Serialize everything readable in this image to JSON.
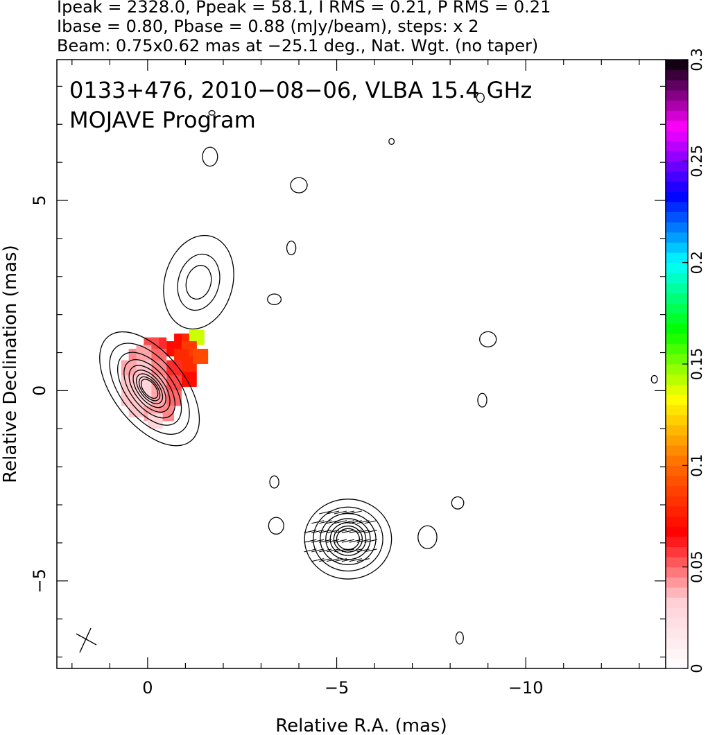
{
  "header": {
    "line1": "Ipeak = 2328.0, Ppeak = 58.1, I RMS = 0.21, P RMS = 0.21",
    "line2": "Ibase = 0.80, Pbase = 0.88 (mJy/beam), steps: x 2",
    "line3": "Beam: 0.75x0.62 mas at −25.1 deg., Nat. Wgt. (no taper)"
  },
  "chart_data": {
    "type": "heatmap",
    "title": "0133+476, 2010−08−06, VLBA 15.4 GHz",
    "subtitle": "MOJAVE Program",
    "xlabel": "Relative R.A. (mas)",
    "ylabel": "Relative Declination (mas)",
    "xlim": [
      2.4,
      -13.7
    ],
    "ylim": [
      -7.3,
      8.7
    ],
    "x_ticks": [
      0,
      -5,
      -10
    ],
    "x_tick_labels": [
      "0",
      "−5",
      "−10"
    ],
    "y_ticks": [
      -5,
      0,
      5
    ],
    "y_tick_labels": [
      "−5",
      "0",
      "5"
    ],
    "colorbar": {
      "range": [
        0,
        0.3
      ],
      "ticks": [
        0,
        0.05,
        0.1,
        0.15,
        0.2,
        0.25,
        0.3
      ],
      "tick_labels": [
        "0",
        "0.05",
        "0.1",
        "0.15",
        "0.2",
        "0.25",
        "0.3"
      ],
      "colors": [
        "#ffffff",
        "#ffd0d6",
        "#ff0000",
        "#ff6a00",
        "#ffff00",
        "#00ff00",
        "#00ffff",
        "#0000ff",
        "#ff00ff",
        "#000000"
      ]
    },
    "contour_color": "#000000",
    "contour_sources": [
      {
        "name": "core",
        "x": -0.05,
        "y": 0.05,
        "rx0": 0.95,
        "ry0": 1.75,
        "angle_deg": -38,
        "levels": 9,
        "shrink": 0.8
      },
      {
        "name": "inner-jet",
        "x": -1.35,
        "y": 2.85,
        "rx0": 0.9,
        "ry0": 1.25,
        "angle_deg": 15,
        "levels": 3,
        "shrink": 0.6
      },
      {
        "name": "southern-component",
        "x": -5.3,
        "y": -3.9,
        "rx0": 1.15,
        "ry0": 1.05,
        "angle_deg": 0,
        "levels": 7,
        "shrink": 0.8
      }
    ],
    "noise_islands": [
      {
        "x": -1.65,
        "y": 6.15,
        "rx": 0.2,
        "ry": 0.25
      },
      {
        "x": -3.8,
        "y": 3.75,
        "rx": 0.12,
        "ry": 0.18
      },
      {
        "x": -4.0,
        "y": 5.4,
        "rx": 0.22,
        "ry": 0.2
      },
      {
        "x": -3.35,
        "y": 2.4,
        "rx": 0.18,
        "ry": 0.14
      },
      {
        "x": -9.0,
        "y": 1.35,
        "rx": 0.22,
        "ry": 0.2
      },
      {
        "x": -8.85,
        "y": -0.25,
        "rx": 0.12,
        "ry": 0.18
      },
      {
        "x": -6.45,
        "y": 6.55,
        "rx": 0.07,
        "ry": 0.08
      },
      {
        "x": -8.8,
        "y": 7.7,
        "rx": 0.1,
        "ry": 0.12
      },
      {
        "x": -3.35,
        "y": -2.4,
        "rx": 0.12,
        "ry": 0.16
      },
      {
        "x": -3.4,
        "y": -3.55,
        "rx": 0.2,
        "ry": 0.22
      },
      {
        "x": -8.2,
        "y": -2.95,
        "rx": 0.16,
        "ry": 0.16
      },
      {
        "x": -7.4,
        "y": -3.85,
        "rx": 0.25,
        "ry": 0.3
      },
      {
        "x": -8.25,
        "y": -6.5,
        "rx": 0.1,
        "ry": 0.16
      },
      {
        "x": -13.4,
        "y": 0.3,
        "rx": 0.08,
        "ry": 0.1
      },
      {
        "x": -1.7,
        "y": 7.3,
        "rx": 0.08,
        "ry": 0.06
      }
    ],
    "polarization_pixels": [
      {
        "x": -0.9,
        "y": 1.3,
        "v": 0.07
      },
      {
        "x": -1.1,
        "y": 1.3,
        "v": 0.08
      },
      {
        "x": -1.3,
        "y": 1.4,
        "v": 0.14
      },
      {
        "x": -0.3,
        "y": 1.2,
        "v": 0.06
      },
      {
        "x": -0.1,
        "y": 1.2,
        "v": 0.055
      },
      {
        "x": 0.3,
        "y": 0.9,
        "v": 0.045
      },
      {
        "x": 0.1,
        "y": 1.0,
        "v": 0.04
      },
      {
        "x": -0.3,
        "y": 0.9,
        "v": 0.05
      },
      {
        "x": -0.7,
        "y": 1.1,
        "v": 0.07
      },
      {
        "x": -1.1,
        "y": 1.1,
        "v": 0.085
      },
      {
        "x": -0.9,
        "y": 0.9,
        "v": 0.08
      },
      {
        "x": 0.5,
        "y": 0.6,
        "v": 0.04
      },
      {
        "x": 0.1,
        "y": 0.6,
        "v": 0.035
      },
      {
        "x": -0.3,
        "y": 0.6,
        "v": 0.045
      },
      {
        "x": -0.7,
        "y": 0.6,
        "v": 0.06
      },
      {
        "x": -1.1,
        "y": 0.7,
        "v": 0.08
      },
      {
        "x": -1.4,
        "y": 0.9,
        "v": 0.09
      },
      {
        "x": 0.5,
        "y": 0.2,
        "v": 0.035
      },
      {
        "x": 0.1,
        "y": 0.2,
        "v": 0.03
      },
      {
        "x": -0.3,
        "y": 0.2,
        "v": 0.04
      },
      {
        "x": -0.7,
        "y": 0.2,
        "v": 0.055
      },
      {
        "x": -1.1,
        "y": 0.3,
        "v": 0.07
      },
      {
        "x": 0.5,
        "y": -0.2,
        "v": 0.035
      },
      {
        "x": 0.1,
        "y": -0.2,
        "v": 0.03
      },
      {
        "x": -0.3,
        "y": -0.2,
        "v": 0.04
      },
      {
        "x": -0.7,
        "y": -0.2,
        "v": 0.05
      },
      {
        "x": 0.3,
        "y": -0.5,
        "v": 0.035
      },
      {
        "x": -0.1,
        "y": -0.6,
        "v": 0.04
      },
      {
        "x": -0.5,
        "y": -0.6,
        "v": 0.045
      },
      {
        "x": -0.2,
        "y": -0.8,
        "v": 0.03
      }
    ],
    "evpa_region": {
      "x": -5.15,
      "y": -3.9,
      "rx": 0.95,
      "ry": 0.8
    }
  }
}
